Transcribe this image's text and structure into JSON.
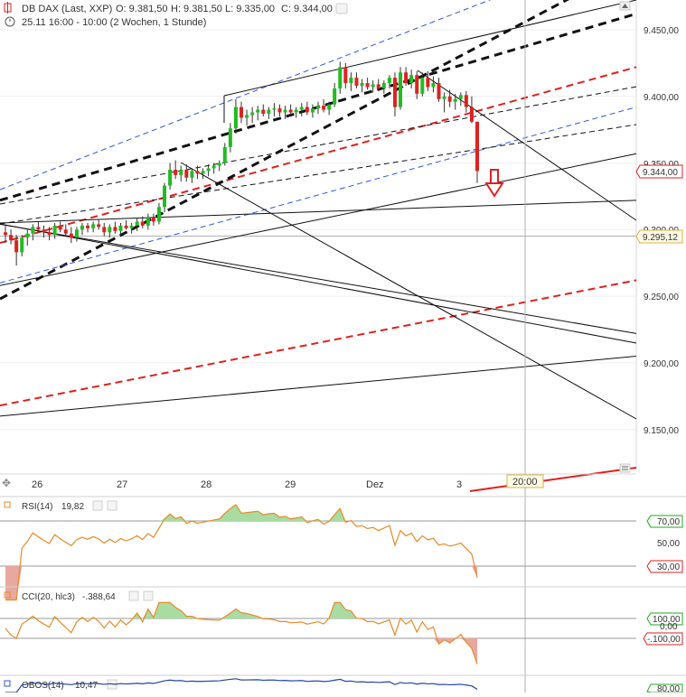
{
  "header": {
    "instrument": "DB DAX (Last, XXP)",
    "open": "O: 9.381,50",
    "high": "H: 9.381,50",
    "low": "L: 9.335,00",
    "close": "C: 9.344,00",
    "period": "25.11 16:00 - 10:00 (2 Wochen, 1 Stunde)"
  },
  "x_axis": {
    "labels": [
      "26",
      "27",
      "28",
      "29",
      "Dez",
      "3"
    ],
    "time_badge": "20:00"
  },
  "price_axis": {
    "labels": [
      "9.450,00",
      "9.400,00",
      "9.350,00",
      "9.300,00",
      "9.250,00",
      "9.200,00",
      "9.150,00"
    ],
    "last_price_badge": "9.344,00",
    "crosshair_badge": "9.295,12"
  },
  "rsi_panel": {
    "title": "RSI(14)",
    "value": "19,82",
    "labels": [
      "70,00",
      "50,00",
      "30,00"
    ]
  },
  "cci_panel": {
    "title": "CCI(20, hlc3)",
    "value": "-.388,64",
    "labels": [
      "100,00",
      "0,00",
      "-.100,00"
    ]
  },
  "obos_panel": {
    "title": "OBOS(14)",
    "value": "10,47",
    "labels": [
      "80,00"
    ]
  },
  "colors": {
    "up": "#22bb22",
    "down": "#dd2222",
    "indicator_line": "#e88a2a",
    "indicator_fill": "#a8dca0",
    "indicator_fill_low": "#e8a8a0",
    "trend_red": "#e02020",
    "trend_black": "#111111",
    "trend_blue": "#3355dd"
  },
  "chart_data": {
    "type": "candlestick",
    "title": "DB DAX (Last, XXP)",
    "timeframe": "1 Stunde",
    "x_labels": [
      "26",
      "27",
      "28",
      "29",
      "Dez",
      "3"
    ],
    "ylim": [
      9125,
      9470
    ],
    "last_close": 9344.0,
    "crosshair_price": 9295.12,
    "candles": [
      [
        9298,
        9303,
        9290,
        9296
      ],
      [
        9296,
        9300,
        9289,
        9292
      ],
      [
        9292,
        9296,
        9273,
        9283
      ],
      [
        9283,
        9296,
        9280,
        9294
      ],
      [
        9294,
        9300,
        9288,
        9297
      ],
      [
        9297,
        9304,
        9292,
        9302
      ],
      [
        9302,
        9306,
        9298,
        9300
      ],
      [
        9300,
        9303,
        9294,
        9298
      ],
      [
        9298,
        9302,
        9292,
        9296
      ],
      [
        9296,
        9305,
        9293,
        9303
      ],
      [
        9303,
        9306,
        9298,
        9300
      ],
      [
        9300,
        9304,
        9295,
        9297
      ],
      [
        9297,
        9302,
        9290,
        9294
      ],
      [
        9294,
        9302,
        9291,
        9300
      ],
      [
        9300,
        9305,
        9296,
        9303
      ],
      [
        9303,
        9305,
        9298,
        9301
      ],
      [
        9301,
        9306,
        9298,
        9304
      ],
      [
        9304,
        9308,
        9300,
        9302
      ],
      [
        9302,
        9305,
        9295,
        9298
      ],
      [
        9298,
        9304,
        9294,
        9302
      ],
      [
        9302,
        9306,
        9297,
        9299
      ],
      [
        9299,
        9305,
        9296,
        9303
      ],
      [
        9303,
        9307,
        9300,
        9301
      ],
      [
        9301,
        9305,
        9297,
        9303
      ],
      [
        9303,
        9309,
        9299,
        9306
      ],
      [
        9306,
        9310,
        9301,
        9303
      ],
      [
        9303,
        9312,
        9300,
        9309
      ],
      [
        9309,
        9312,
        9303,
        9306
      ],
      [
        9306,
        9320,
        9304,
        9317
      ],
      [
        9317,
        9335,
        9313,
        9333
      ],
      [
        9333,
        9350,
        9330,
        9345
      ],
      [
        9345,
        9352,
        9338,
        9341
      ],
      [
        9341,
        9348,
        9336,
        9345
      ],
      [
        9345,
        9349,
        9336,
        9339
      ],
      [
        9339,
        9346,
        9335,
        9344
      ],
      [
        9344,
        9348,
        9338,
        9342
      ],
      [
        9342,
        9346,
        9338,
        9344
      ],
      [
        9344,
        9349,
        9340,
        9346
      ],
      [
        9346,
        9350,
        9342,
        9348
      ],
      [
        9348,
        9352,
        9344,
        9350
      ],
      [
        9350,
        9365,
        9348,
        9362
      ],
      [
        9362,
        9380,
        9358,
        9376
      ],
      [
        9376,
        9398,
        9372,
        9392
      ],
      [
        9392,
        9396,
        9380,
        9384
      ],
      [
        9384,
        9390,
        9378,
        9386
      ],
      [
        9386,
        9392,
        9380,
        9388
      ],
      [
        9388,
        9393,
        9382,
        9390
      ],
      [
        9390,
        9394,
        9385,
        9387
      ],
      [
        9387,
        9392,
        9383,
        9390
      ],
      [
        9390,
        9395,
        9385,
        9391
      ],
      [
        9391,
        9394,
        9385,
        9388
      ],
      [
        9388,
        9393,
        9383,
        9390
      ],
      [
        9390,
        9394,
        9386,
        9388
      ],
      [
        9388,
        9392,
        9384,
        9390
      ],
      [
        9390,
        9395,
        9385,
        9392
      ],
      [
        9392,
        9396,
        9386,
        9388
      ],
      [
        9388,
        9394,
        9384,
        9391
      ],
      [
        9391,
        9396,
        9387,
        9393
      ],
      [
        9393,
        9398,
        9388,
        9390
      ],
      [
        9390,
        9396,
        9386,
        9394
      ],
      [
        9394,
        9410,
        9392,
        9406
      ],
      [
        9406,
        9426,
        9402,
        9422
      ],
      [
        9422,
        9425,
        9406,
        9410
      ],
      [
        9410,
        9418,
        9404,
        9414
      ],
      [
        9414,
        9418,
        9406,
        9408
      ],
      [
        9408,
        9413,
        9403,
        9410
      ],
      [
        9410,
        9414,
        9405,
        9407
      ],
      [
        9407,
        9412,
        9403,
        9409
      ],
      [
        9409,
        9413,
        9404,
        9406
      ],
      [
        9406,
        9412,
        9402,
        9410
      ],
      [
        9410,
        9416,
        9406,
        9414
      ],
      [
        9414,
        9418,
        9385,
        9392
      ],
      [
        9392,
        9422,
        9390,
        9418
      ],
      [
        9418,
        9422,
        9408,
        9410
      ],
      [
        9410,
        9420,
        9406,
        9416
      ],
      [
        9416,
        9419,
        9398,
        9402
      ],
      [
        9402,
        9418,
        9400,
        9414
      ],
      [
        9414,
        9419,
        9404,
        9407
      ],
      [
        9407,
        9415,
        9403,
        9410
      ],
      [
        9410,
        9414,
        9396,
        9398
      ],
      [
        9398,
        9403,
        9388,
        9400
      ],
      [
        9400,
        9405,
        9392,
        9396
      ],
      [
        9396,
        9402,
        9390,
        9398
      ],
      [
        9398,
        9403,
        9393,
        9401
      ],
      [
        9401,
        9404,
        9388,
        9392
      ],
      [
        9392,
        9400,
        9380,
        9381
      ],
      [
        9381,
        9381,
        9335,
        9344
      ]
    ],
    "trendlines": [
      {
        "style": "red-dashed",
        "from": [
          0,
          9290
        ],
        "to": [
          1,
          9422
        ]
      },
      {
        "style": "red-dashed",
        "from": [
          0,
          9168
        ],
        "to": [
          1,
          9262
        ]
      },
      {
        "style": "black-bold-dashed",
        "from": [
          0,
          9322
        ],
        "to": [
          1,
          9462
        ]
      },
      {
        "style": "black-bold-dashed",
        "from": [
          0,
          9248
        ],
        "to": [
          1,
          9500
        ]
      },
      {
        "style": "blue-dashed",
        "from": [
          0,
          9260
        ],
        "to": [
          1,
          9392
        ]
      },
      {
        "style": "blue-dashed",
        "from": [
          0,
          9330
        ],
        "to": [
          1,
          9515
        ]
      },
      {
        "style": "black-thin",
        "from": [
          0,
          9305
        ],
        "to": [
          1,
          9322
        ]
      },
      {
        "style": "black-thin",
        "from": [
          0,
          9258
        ],
        "to": [
          1,
          9357
        ]
      },
      {
        "style": "black-thin",
        "from": [
          0,
          9304
        ],
        "to": [
          1,
          9222
        ]
      },
      {
        "style": "black-thin",
        "from": [
          0,
          9160
        ],
        "to": [
          1,
          9205
        ]
      }
    ],
    "rsi": {
      "name": "RSI(14)",
      "current": 19.82,
      "levels": [
        70,
        50,
        30
      ]
    },
    "cci": {
      "name": "CCI(20, hlc3)",
      "current": -388.64,
      "levels": [
        100,
        0,
        -100
      ]
    },
    "obos": {
      "name": "OBOS(14)",
      "current": 10.47,
      "levels": [
        80
      ]
    }
  }
}
